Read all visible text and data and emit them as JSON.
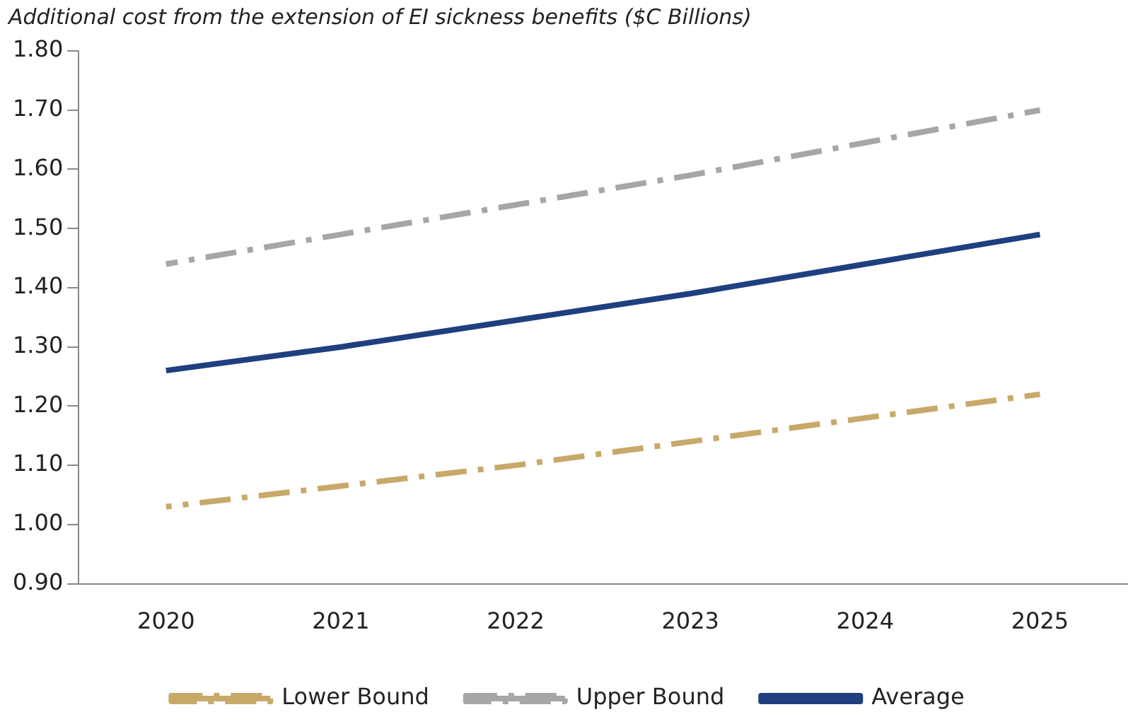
{
  "chart_data": {
    "type": "line",
    "title": "Additional cost from the extension of EI sickness benefits ($C Billions)",
    "categories": [
      "2020",
      "2021",
      "2022",
      "2023",
      "2024",
      "2025"
    ],
    "series": [
      {
        "name": "Lower Bound",
        "color": "#c8a96a",
        "line_style": "dashed",
        "values": [
          1.03,
          1.065,
          1.1,
          1.14,
          1.18,
          1.22
        ]
      },
      {
        "name": "Upper Bound",
        "color": "#a6a6a6",
        "line_style": "dashed",
        "values": [
          1.44,
          1.49,
          1.54,
          1.59,
          1.645,
          1.7
        ]
      },
      {
        "name": "Average",
        "color": "#1f3f7f",
        "line_style": "solid",
        "values": [
          1.26,
          1.3,
          1.345,
          1.39,
          1.44,
          1.49
        ]
      }
    ],
    "ylim": [
      0.9,
      1.8
    ],
    "yticks": [
      {
        "value": 0.9,
        "label": "0.90"
      },
      {
        "value": 1.0,
        "label": "1.00"
      },
      {
        "value": 1.1,
        "label": "1.10"
      },
      {
        "value": 1.2,
        "label": "1.20"
      },
      {
        "value": 1.3,
        "label": "1.30"
      },
      {
        "value": 1.4,
        "label": "1.40"
      },
      {
        "value": 1.5,
        "label": "1.50"
      },
      {
        "value": 1.6,
        "label": "1.60"
      },
      {
        "value": 1.7,
        "label": "1.70"
      },
      {
        "value": 1.8,
        "label": "1.80"
      }
    ],
    "grid": false,
    "legend": "bottom",
    "marker": "none"
  }
}
